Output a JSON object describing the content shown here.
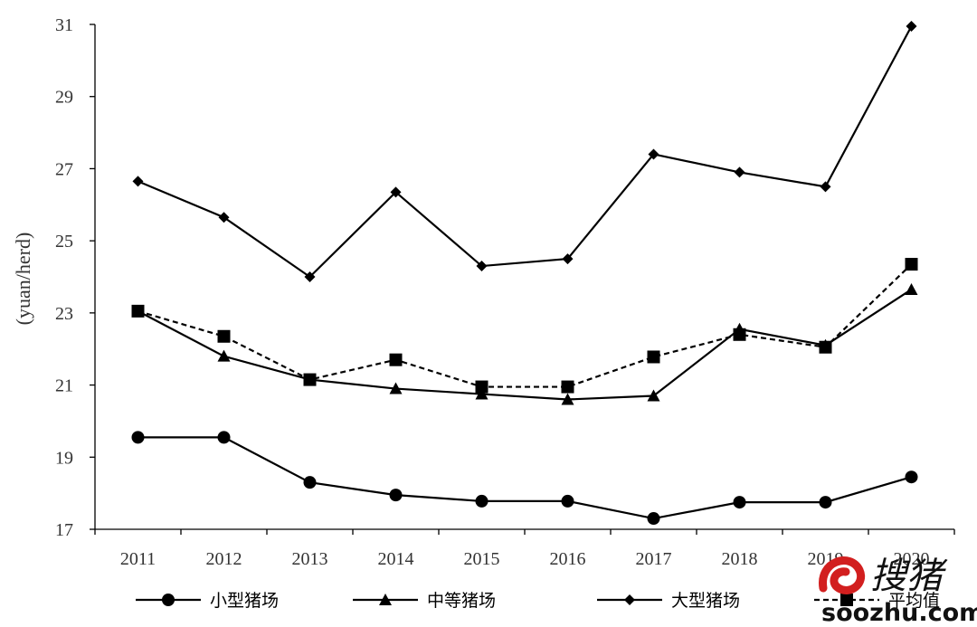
{
  "chart_data": {
    "type": "line",
    "ylabel": "(yuan/herd)",
    "xlabel": "",
    "categories": [
      "2011",
      "2012",
      "2013",
      "2014",
      "2015",
      "2016",
      "2017",
      "2018",
      "2019",
      "2020"
    ],
    "ylim": [
      17,
      31
    ],
    "yticks": [
      17,
      19,
      21,
      23,
      25,
      27,
      29,
      31
    ],
    "grid": false,
    "legend_position": "bottom",
    "series": [
      {
        "name": "小型猪场",
        "marker": "circle",
        "dash": false,
        "values": [
          19.55,
          19.55,
          18.3,
          17.95,
          17.78,
          17.78,
          17.3,
          17.75,
          17.75,
          18.45
        ]
      },
      {
        "name": "中等猪场",
        "marker": "triangle",
        "dash": false,
        "values": [
          23.05,
          21.8,
          21.15,
          20.9,
          20.75,
          20.6,
          20.7,
          22.55,
          22.1,
          23.65
        ]
      },
      {
        "name": "大型猪场",
        "marker": "diamond",
        "dash": false,
        "values": [
          26.65,
          25.65,
          24.0,
          26.35,
          24.3,
          24.5,
          27.4,
          26.9,
          26.5,
          30.95
        ]
      },
      {
        "name": "平均值",
        "marker": "square",
        "dash": true,
        "values": [
          23.05,
          22.35,
          21.15,
          21.7,
          20.95,
          20.95,
          21.78,
          22.4,
          22.05,
          24.35
        ]
      }
    ]
  },
  "watermark": {
    "text": "soozhu.com",
    "cn_text": "搜猪",
    "color": "#d21f1f"
  }
}
